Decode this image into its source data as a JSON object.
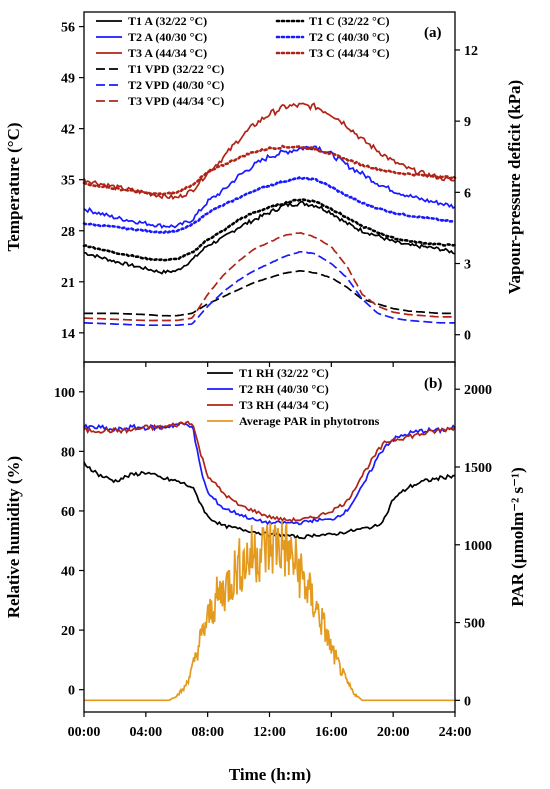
{
  "chart_data": [
    {
      "panel": "(a)",
      "type": "line",
      "xlabel": "",
      "x_ticks": [
        "00:00",
        "04:00",
        "08:00",
        "12:00",
        "16:00",
        "20:00",
        "24:00"
      ],
      "xlim": [
        0,
        24
      ],
      "ylabel": "Temperature (°C)",
      "ylim": [
        10,
        58
      ],
      "y_ticks": [
        14,
        21,
        28,
        35,
        42,
        49,
        56
      ],
      "y2label": "Vapour-pressure deficit (kPa)",
      "y2lim": [
        -1.15,
        13.6
      ],
      "y2_ticks": [
        0,
        3,
        6,
        9,
        12
      ],
      "legend_placement": "top",
      "grid": false,
      "series": [
        {
          "name": "T1 A (32/22 °C)",
          "axis": "left",
          "style": "solid",
          "color": "#000000",
          "x": [
            0,
            2,
            4,
            5,
            6,
            7,
            8,
            9,
            10,
            11,
            12,
            13,
            14,
            15,
            16,
            17,
            18,
            19,
            20,
            21,
            22,
            23,
            24
          ],
          "y": [
            25,
            23.8,
            22.8,
            22.3,
            22.5,
            24,
            26,
            27,
            28.5,
            29.5,
            30.5,
            31.5,
            31.8,
            31.5,
            30.5,
            29,
            28,
            27.3,
            26.5,
            26,
            25.8,
            25.5,
            25
          ]
        },
        {
          "name": "T2 A (40/30 °C)",
          "axis": "left",
          "style": "solid",
          "color": "#1a1aff",
          "x": [
            0,
            2,
            4,
            5,
            6,
            7,
            8,
            9,
            10,
            11,
            12,
            13,
            14,
            15,
            16,
            17,
            18,
            19,
            20,
            21,
            22,
            23,
            24
          ],
          "y": [
            31,
            29.8,
            29,
            28.7,
            28.6,
            29.5,
            32,
            33.5,
            35.5,
            37,
            38.2,
            38.8,
            39.3,
            39.6,
            38.5,
            37,
            35.8,
            34.5,
            33.5,
            32.8,
            32.2,
            31.8,
            31.3
          ]
        },
        {
          "name": "T3 A (44/34 °C)",
          "axis": "left",
          "style": "solid",
          "color": "#b02418",
          "x": [
            0,
            2,
            4,
            5,
            6,
            7,
            8,
            9,
            10,
            11,
            12,
            13,
            14,
            15,
            16,
            17,
            18,
            19,
            20,
            21,
            22,
            23,
            24
          ],
          "y": [
            35,
            34,
            33.2,
            32.8,
            32.5,
            33.5,
            36,
            38,
            40.5,
            42.5,
            44,
            45,
            45.2,
            45,
            44,
            42.5,
            40.5,
            39,
            37.5,
            36.5,
            35.8,
            35.3,
            34.8
          ]
        },
        {
          "name": "T1 C (32/22 °C)",
          "axis": "left",
          "style": "dotted",
          "color": "#000000",
          "x": [
            0,
            2,
            4,
            5,
            6,
            7,
            8,
            9,
            10,
            11,
            12,
            13,
            14,
            15,
            16,
            17,
            18,
            19,
            20,
            21,
            22,
            23,
            24
          ],
          "y": [
            26,
            25,
            24.2,
            24,
            24.1,
            25,
            26.8,
            28,
            29.5,
            30.5,
            31.2,
            31.8,
            32.3,
            32,
            31,
            29.8,
            28.6,
            27.8,
            27,
            26.6,
            26.3,
            26.1,
            26
          ]
        },
        {
          "name": "T2 C (40/30 °C)",
          "axis": "left",
          "style": "dotted",
          "color": "#1a1aff",
          "x": [
            0,
            2,
            4,
            5,
            6,
            7,
            8,
            9,
            10,
            11,
            12,
            13,
            14,
            15,
            16,
            17,
            18,
            19,
            20,
            21,
            22,
            23,
            24
          ],
          "y": [
            29,
            28.5,
            28,
            27.8,
            27.9,
            28.8,
            30.5,
            31.5,
            32.5,
            33.5,
            34.2,
            34.8,
            35.2,
            35,
            34,
            32.8,
            31.8,
            31.1,
            30.5,
            30.1,
            29.8,
            29.5,
            29.2
          ]
        },
        {
          "name": "T3 C (44/34 °C)",
          "axis": "left",
          "style": "dotted",
          "color": "#b02418",
          "x": [
            0,
            2,
            4,
            5,
            6,
            7,
            8,
            9,
            10,
            11,
            12,
            13,
            14,
            15,
            16,
            17,
            18,
            19,
            20,
            21,
            22,
            23,
            24
          ],
          "y": [
            34.5,
            33.8,
            33.2,
            33,
            33.2,
            34.3,
            36,
            37,
            38,
            38.8,
            39.3,
            39.5,
            39.5,
            39.2,
            38.5,
            37.8,
            37,
            36.5,
            36,
            35.8,
            35.6,
            35.4,
            35.3
          ]
        },
        {
          "name": "T1 VPD (32/22 °C)",
          "axis": "right",
          "style": "dashed",
          "color": "#000000",
          "x": [
            0,
            2,
            4,
            5,
            6,
            7,
            8,
            9,
            10,
            11,
            12,
            13,
            14,
            15,
            16,
            17,
            18,
            19,
            20,
            21,
            22,
            23,
            24
          ],
          "y": [
            0.9,
            0.9,
            0.85,
            0.8,
            0.8,
            0.9,
            1.3,
            1.6,
            1.9,
            2.2,
            2.4,
            2.6,
            2.7,
            2.6,
            2.4,
            2,
            1.5,
            1.3,
            1.1,
            1,
            0.95,
            0.9,
            0.9
          ]
        },
        {
          "name": "T2 VPD (40/30 °C)",
          "axis": "right",
          "style": "dashed",
          "color": "#1a1aff",
          "x": [
            0,
            2,
            4,
            5,
            6,
            7,
            8,
            9,
            10,
            11,
            12,
            13,
            14,
            15,
            16,
            17,
            18,
            19,
            20,
            21,
            22,
            23,
            24
          ],
          "y": [
            0.5,
            0.45,
            0.4,
            0.4,
            0.4,
            0.45,
            1.2,
            1.8,
            2.3,
            2.7,
            3,
            3.3,
            3.5,
            3.4,
            3,
            2.4,
            1.5,
            0.9,
            0.7,
            0.6,
            0.55,
            0.5,
            0.5
          ]
        },
        {
          "name": "T3 VPD (44/34 °C)",
          "axis": "right",
          "style": "dashed",
          "color": "#b02418",
          "x": [
            0,
            2,
            4,
            5,
            6,
            7,
            8,
            9,
            10,
            11,
            12,
            13,
            14,
            15,
            16,
            17,
            18,
            19,
            20,
            21,
            22,
            23,
            24
          ],
          "y": [
            0.7,
            0.65,
            0.6,
            0.6,
            0.6,
            0.7,
            1.7,
            2.5,
            3.1,
            3.6,
            3.9,
            4.2,
            4.3,
            4.1,
            3.7,
            2.9,
            1.7,
            1.2,
            0.95,
            0.85,
            0.8,
            0.75,
            0.75
          ]
        }
      ]
    },
    {
      "panel": "(b)",
      "type": "line",
      "xlabel": "Time (h:m)",
      "x_ticks": [
        "00:00",
        "04:00",
        "08:00",
        "12:00",
        "16:00",
        "20:00",
        "24:00"
      ],
      "xlim": [
        0,
        24
      ],
      "ylabel": "Relative humidity (%)",
      "ylim": [
        -7.5,
        110
      ],
      "y_ticks": [
        0,
        20,
        40,
        60,
        80,
        100
      ],
      "y2label": "PAR (µmolm⁻² s⁻¹)",
      "y2lim": [
        -75,
        2175
      ],
      "y2_ticks": [
        0,
        500,
        1000,
        1500,
        2000
      ],
      "legend_placement": "top",
      "grid": false,
      "series": [
        {
          "name": "T1 RH (32/22 °C)",
          "axis": "left",
          "style": "solid",
          "color": "#000000",
          "x": [
            0,
            1,
            2,
            3,
            4,
            5,
            6,
            7,
            7.5,
            8,
            9,
            10,
            11,
            12,
            13,
            14,
            15,
            16,
            17,
            18,
            19,
            19.5,
            20,
            21,
            22,
            23,
            24
          ],
          "y": [
            76,
            72,
            70,
            72,
            73,
            71,
            70,
            68,
            63,
            58,
            55,
            54,
            53,
            52,
            52,
            51,
            52,
            52,
            53,
            54,
            55,
            58,
            64,
            68,
            70,
            71,
            72
          ]
        },
        {
          "name": "T2 RH (40/30 °C)",
          "axis": "left",
          "style": "solid",
          "color": "#1a1aff",
          "x": [
            0,
            1,
            2,
            3,
            4,
            5,
            6,
            7,
            7.5,
            8,
            9,
            10,
            11,
            12,
            13,
            14,
            15,
            16,
            17,
            18,
            19,
            19.5,
            20,
            21,
            22,
            23,
            24
          ],
          "y": [
            88,
            88,
            87,
            88,
            88,
            88,
            89,
            89,
            75,
            66,
            61,
            59,
            57,
            56,
            56,
            56,
            57,
            57,
            60,
            68,
            78,
            82,
            84,
            86,
            87,
            87,
            88
          ]
        },
        {
          "name": "T3 RH (44/34 °C)",
          "axis": "left",
          "style": "solid",
          "color": "#b02418",
          "x": [
            0,
            1,
            2,
            3,
            4,
            5,
            6,
            7,
            7.5,
            8,
            9,
            10,
            11,
            12,
            13,
            14,
            15,
            16,
            17,
            18,
            19,
            19.5,
            20,
            21,
            22,
            23,
            24
          ],
          "y": [
            87,
            87,
            87,
            87,
            88,
            88,
            89,
            90,
            80,
            72,
            66,
            62,
            60,
            58,
            57,
            57,
            58,
            60,
            63,
            72,
            80,
            83,
            84,
            85,
            86,
            87,
            88
          ]
        },
        {
          "name": "Average PAR in phytotrons",
          "axis": "right",
          "style": "solid",
          "color": "#e39a1e",
          "x": [
            0,
            5.5,
            6,
            6.5,
            7,
            7.5,
            8,
            8.5,
            9,
            9.5,
            10,
            10.5,
            11,
            11.5,
            12,
            12.5,
            13,
            13.5,
            14,
            14.5,
            15,
            15.5,
            16,
            16.5,
            17,
            17.5,
            18,
            24
          ],
          "y": [
            0,
            0,
            30,
            80,
            200,
            380,
            520,
            640,
            700,
            780,
            860,
            900,
            950,
            960,
            980,
            1010,
            980,
            900,
            820,
            700,
            600,
            480,
            330,
            220,
            120,
            40,
            0,
            0
          ]
        }
      ]
    }
  ]
}
